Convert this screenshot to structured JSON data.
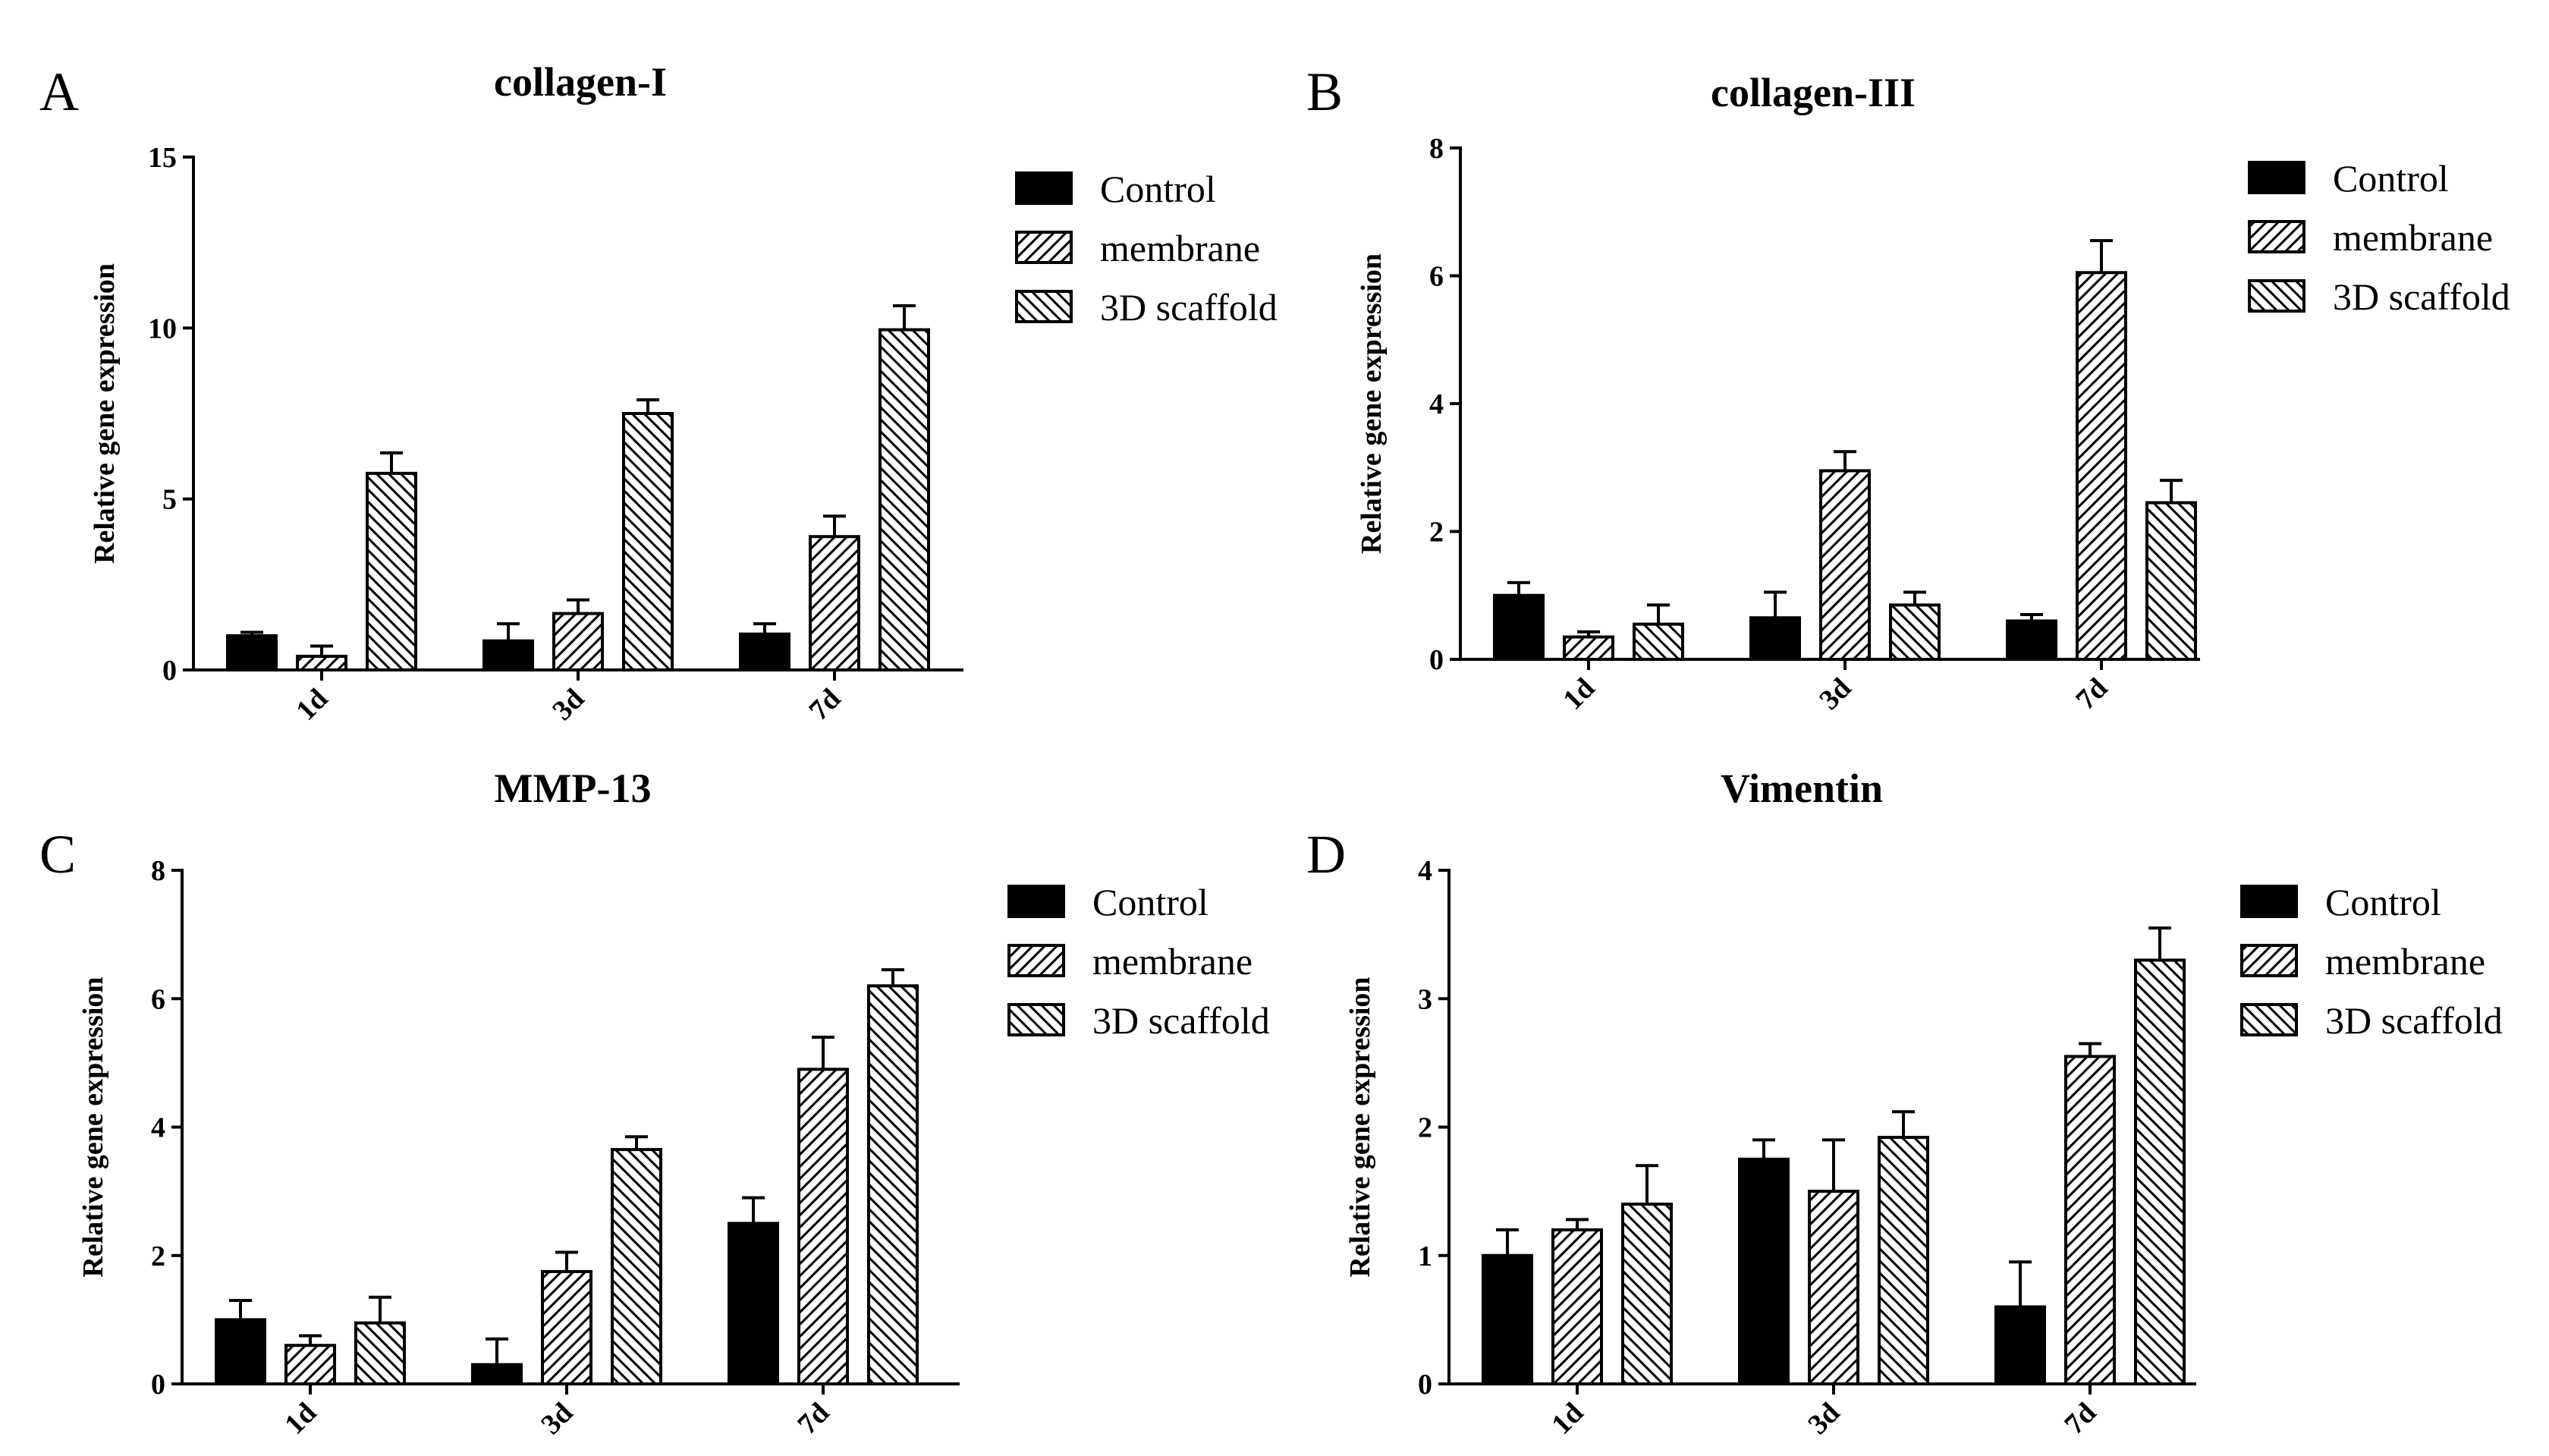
{
  "figure": {
    "panels": [
      "A",
      "B",
      "C",
      "D"
    ]
  },
  "colors": {
    "control": "#000000",
    "stroke": "#000000",
    "background": "#ffffff"
  },
  "chart_data": [
    {
      "panel": "A",
      "type": "bar",
      "title": "collagen-I",
      "ylabel": "Relative gene expression",
      "xlabel": "",
      "categories": [
        "1d",
        "3d",
        "7d"
      ],
      "ylim": [
        0,
        15
      ],
      "yticks": [
        0,
        5,
        10,
        15
      ],
      "legend_position": "top-right",
      "series": [
        {
          "name": "Control",
          "pattern": "solid",
          "values": [
            1.0,
            0.85,
            1.05
          ],
          "errors": [
            0.1,
            0.5,
            0.3
          ]
        },
        {
          "name": "membrane",
          "pattern": "hatch-forward",
          "values": [
            0.4,
            1.65,
            3.9
          ],
          "errors": [
            0.3,
            0.4,
            0.6
          ]
        },
        {
          "name": "3D scaffold",
          "pattern": "hatch-back",
          "values": [
            5.75,
            7.5,
            9.95
          ],
          "errors": [
            0.6,
            0.4,
            0.7
          ]
        }
      ]
    },
    {
      "panel": "B",
      "type": "bar",
      "title": "collagen-III",
      "ylabel": "Relative gene expression",
      "xlabel": "",
      "categories": [
        "1d",
        "3d",
        "7d"
      ],
      "ylim": [
        0,
        8
      ],
      "yticks": [
        0,
        2,
        4,
        6,
        8
      ],
      "legend_position": "top-right",
      "series": [
        {
          "name": "Control",
          "pattern": "solid",
          "values": [
            1.0,
            0.65,
            0.6
          ],
          "errors": [
            0.2,
            0.4,
            0.1
          ]
        },
        {
          "name": "membrane",
          "pattern": "hatch-forward",
          "values": [
            0.35,
            2.95,
            6.05
          ],
          "errors": [
            0.08,
            0.3,
            0.5
          ]
        },
        {
          "name": "3D scaffold",
          "pattern": "hatch-back",
          "values": [
            0.55,
            0.85,
            2.45
          ],
          "errors": [
            0.3,
            0.2,
            0.35
          ]
        }
      ]
    },
    {
      "panel": "C",
      "type": "bar",
      "title": "MMP-13",
      "ylabel": "Relative gene expression",
      "xlabel": "",
      "categories": [
        "1d",
        "3d",
        "7d"
      ],
      "ylim": [
        0,
        8
      ],
      "yticks": [
        0,
        2,
        4,
        6,
        8
      ],
      "legend_position": "top-right",
      "series": [
        {
          "name": "Control",
          "pattern": "solid",
          "values": [
            1.0,
            0.3,
            2.5
          ],
          "errors": [
            0.3,
            0.4,
            0.4
          ]
        },
        {
          "name": "membrane",
          "pattern": "hatch-forward",
          "values": [
            0.6,
            1.75,
            4.9
          ],
          "errors": [
            0.15,
            0.3,
            0.5
          ]
        },
        {
          "name": "3D scaffold",
          "pattern": "hatch-back",
          "values": [
            0.95,
            3.65,
            6.2
          ],
          "errors": [
            0.4,
            0.2,
            0.25
          ]
        }
      ]
    },
    {
      "panel": "D",
      "type": "bar",
      "title": "Vimentin",
      "ylabel": "Relative gene expression",
      "xlabel": "",
      "categories": [
        "1d",
        "3d",
        "7d"
      ],
      "ylim": [
        0,
        4
      ],
      "yticks": [
        0,
        1,
        2,
        3,
        4
      ],
      "legend_position": "top-right",
      "series": [
        {
          "name": "Control",
          "pattern": "solid",
          "values": [
            1.0,
            1.75,
            0.6
          ],
          "errors": [
            0.2,
            0.15,
            0.35
          ]
        },
        {
          "name": "membrane",
          "pattern": "hatch-forward",
          "values": [
            1.2,
            1.5,
            2.55
          ],
          "errors": [
            0.08,
            0.4,
            0.1
          ]
        },
        {
          "name": "3D scaffold",
          "pattern": "hatch-back",
          "values": [
            1.4,
            1.92,
            3.3
          ],
          "errors": [
            0.3,
            0.2,
            0.25
          ]
        }
      ]
    }
  ]
}
